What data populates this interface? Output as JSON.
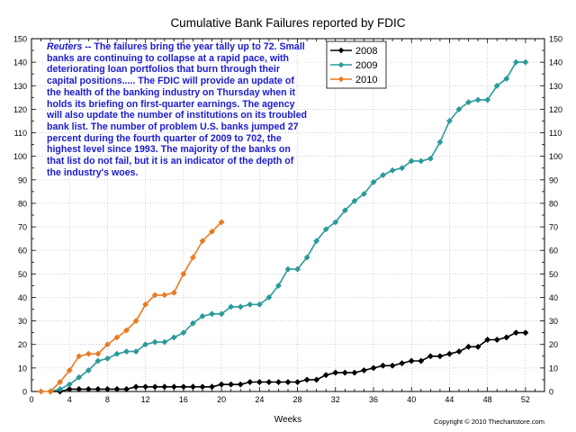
{
  "chart_data": {
    "type": "line",
    "title": "Cumulative Bank Failures reported by FDIC",
    "xlabel": "Weeks",
    "ylabel": "",
    "xlim": [
      0,
      54
    ],
    "ylim": [
      0,
      150
    ],
    "xticks": [
      0,
      4,
      8,
      12,
      16,
      20,
      24,
      28,
      32,
      36,
      40,
      44,
      48,
      52
    ],
    "yticks": [
      0,
      10,
      20,
      30,
      40,
      50,
      60,
      70,
      80,
      90,
      100,
      110,
      120,
      130,
      140,
      150
    ],
    "grid": true,
    "legend_position": "top-right",
    "series": [
      {
        "name": "2008",
        "color": "#000000",
        "marker": "diamond",
        "x": [
          2,
          3,
          4,
          5,
          6,
          7,
          8,
          9,
          10,
          11,
          12,
          13,
          14,
          15,
          16,
          17,
          18,
          19,
          20,
          21,
          22,
          23,
          24,
          25,
          26,
          27,
          28,
          29,
          30,
          31,
          32,
          33,
          34,
          35,
          36,
          37,
          38,
          39,
          40,
          41,
          42,
          43,
          44,
          45,
          46,
          47,
          48,
          49,
          50,
          51,
          52
        ],
        "y": [
          0,
          0,
          1,
          1,
          1,
          1,
          1,
          1,
          1,
          2,
          2,
          2,
          2,
          2,
          2,
          2,
          2,
          2,
          3,
          3,
          3,
          4,
          4,
          4,
          4,
          4,
          4,
          5,
          5,
          7,
          8,
          8,
          8,
          9,
          10,
          11,
          11,
          12,
          13,
          13,
          15,
          15,
          16,
          17,
          19,
          19,
          22,
          22,
          23,
          25,
          25
        ]
      },
      {
        "name": "2009",
        "color": "#2a9a9a",
        "marker": "diamond",
        "x": [
          2,
          3,
          4,
          5,
          6,
          7,
          8,
          9,
          10,
          11,
          12,
          13,
          14,
          15,
          16,
          17,
          18,
          19,
          20,
          21,
          22,
          23,
          24,
          25,
          26,
          27,
          28,
          29,
          30,
          31,
          32,
          33,
          34,
          35,
          36,
          37,
          38,
          39,
          40,
          41,
          42,
          43,
          44,
          45,
          46,
          47,
          48,
          49,
          50,
          51,
          52
        ],
        "y": [
          0,
          1,
          3,
          6,
          9,
          13,
          14,
          16,
          17,
          17,
          20,
          21,
          21,
          23,
          25,
          29,
          32,
          33,
          33,
          36,
          36,
          37,
          37,
          40,
          45,
          52,
          52,
          57,
          64,
          69,
          72,
          77,
          81,
          84,
          89,
          92,
          94,
          95,
          98,
          98,
          99,
          106,
          115,
          120,
          123,
          124,
          124,
          130,
          133,
          140,
          140
        ]
      },
      {
        "name": "2010",
        "color": "#e87b22",
        "marker": "diamond",
        "x": [
          1,
          2,
          3,
          4,
          5,
          6,
          7,
          8,
          9,
          10,
          11,
          12,
          13,
          14,
          15,
          16,
          17,
          18,
          19,
          20
        ],
        "y": [
          0,
          0,
          4,
          9,
          15,
          16,
          16,
          20,
          23,
          26,
          30,
          37,
          41,
          41,
          42,
          50,
          57,
          64,
          68,
          72
        ]
      }
    ],
    "annotation": {
      "source": "Reuters",
      "sep": " --  ",
      "text": "The failures bring the year tally up to 72. Small banks are continuing to collapse at a rapid pace, with deteriorating loan portfolios that burn through their capital positions.....  The FDIC will provide an update of the health of the banking industry on Thursday when it holds its briefing on first-quarter earnings.  The agency will also update the number of institutions on its troubled bank list.  The number of problem U.S. banks jumped 27 percent during the fourth quarter of 2009 to 702, the highest level since 1993.  The majority of the banks on that list do not fail, but it is an indicator of the depth of the industry's woes."
    },
    "copyright": "Copyright © 2010 Thechartstore.com"
  }
}
